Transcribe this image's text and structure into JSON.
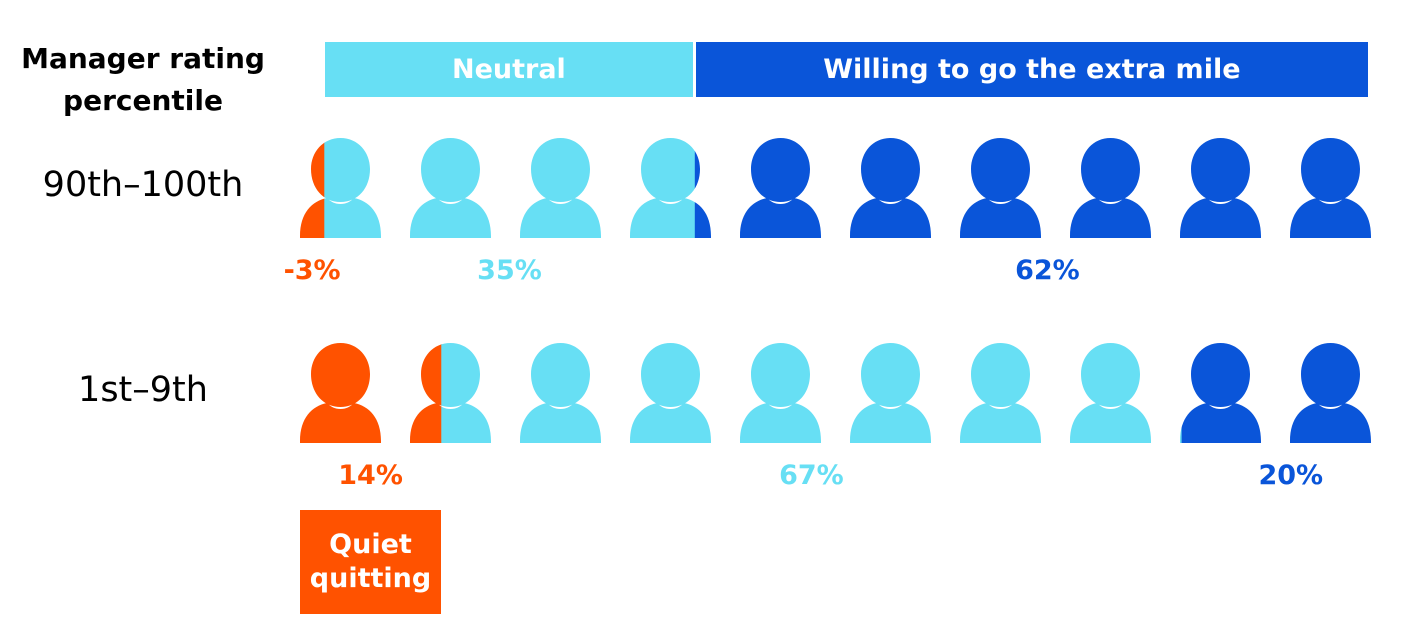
{
  "colors": {
    "quiet": "#FF5200",
    "neutral": "#67DFF4",
    "willing": "#0A55D9"
  },
  "icons": {
    "person": "person-icon"
  },
  "chart_data": {
    "type": "pictogram",
    "axis_title": [
      "Manager rating",
      "percentile"
    ],
    "header": {
      "neutral_label": "Neutral",
      "willing_label": "Willing to go the extra mile"
    },
    "icons_per_row": 10,
    "rows": [
      {
        "label": "90th–100th",
        "segments": [
          {
            "category": "quiet",
            "label": "-3%",
            "value": 3
          },
          {
            "category": "neutral",
            "label": "35%",
            "value": 35
          },
          {
            "category": "willing",
            "label": "62%",
            "value": 62
          }
        ]
      },
      {
        "label": "1st–9th",
        "segments": [
          {
            "category": "quiet",
            "label": "14%",
            "value": 14
          },
          {
            "category": "neutral",
            "label": "67%",
            "value": 67
          },
          {
            "category": "willing",
            "label": "20%",
            "value": 20
          }
        ]
      }
    ],
    "callout": {
      "lines": [
        "Quiet",
        "quitting"
      ]
    }
  }
}
